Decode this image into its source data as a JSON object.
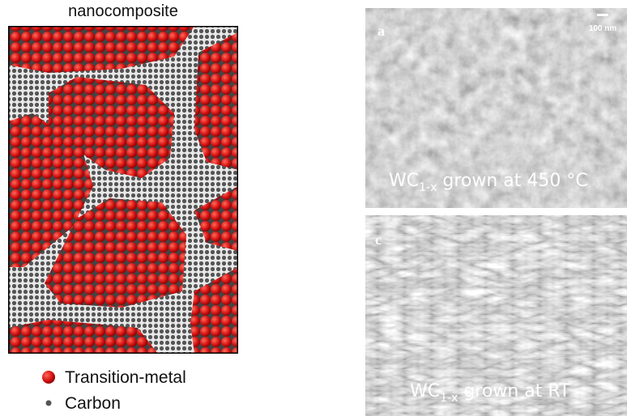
{
  "schematic": {
    "title": "nanocomposite",
    "legend": [
      {
        "label": "Transition-metal"
      },
      {
        "label": "Carbon"
      }
    ]
  },
  "images": [
    {
      "panel": "a",
      "scale_bar": "100 nm",
      "caption": {
        "main": "WC",
        "sub": "1-x",
        "rest": " grown at 450 °C"
      }
    },
    {
      "panel": "c",
      "caption": {
        "main": "WC",
        "sub": "1-x",
        "rest": " grown at RT"
      }
    }
  ]
}
